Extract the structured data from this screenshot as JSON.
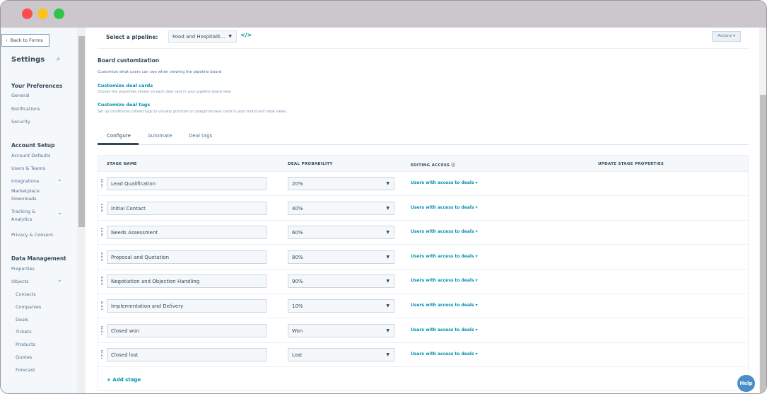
{
  "window": {
    "controls": [
      {
        "name": "close",
        "color": "#ff5f57"
      },
      {
        "name": "minimize",
        "color": "#febc2e"
      },
      {
        "name": "maximize",
        "color": "#28c840"
      }
    ]
  },
  "sidebar": {
    "back": "Back to Forms",
    "title": "Settings",
    "sections": [
      {
        "heading": "Your Preferences",
        "items": [
          "General",
          "Notifications",
          "Security"
        ]
      },
      {
        "heading": "Account Setup",
        "items": [
          "Account Defaults",
          "Users & Teams",
          "Integrations",
          "Marketplace Downloads",
          "Tracking & Analytics",
          "Privacy & Consent"
        ]
      },
      {
        "heading": "Data Management",
        "items": [
          "Properties",
          "Objects",
          "Contacts",
          "Companies",
          "Deals",
          "Tickets",
          "Products",
          "Quotes",
          "Forecast"
        ]
      }
    ]
  },
  "header": {
    "pipeline_label": "Select a pipeline:",
    "pipeline_value": "Food and Hospitalit...",
    "actions": "Actions"
  },
  "board": {
    "title": "Board customization",
    "description": "Customize what users can see when viewing the pipeline board",
    "cards_link": "Customize deal cards",
    "cards_desc": "Choose the properties shown on each deal card in your pipeline board view",
    "tags_link": "Customize deal tags",
    "tags_desc": "Set up conditional colored tags to visually prioritize or categorize deal cards in your board and table views."
  },
  "tabs": [
    "Configure",
    "Automate",
    "Deal tags"
  ],
  "active_tab": "Configure",
  "table": {
    "headers": [
      "STAGE NAME",
      "DEAL PROBABILITY",
      "EDITING ACCESS",
      "UPDATE STAGE PROPERTIES"
    ],
    "rows": [
      {
        "name": "Lead Qualification",
        "probability": "20%",
        "access": "Users with access to deals"
      },
      {
        "name": "Initial Contact",
        "probability": "40%",
        "access": "Users with access to deals"
      },
      {
        "name": "Needs Assessment",
        "probability": "60%",
        "access": "Users with access to deals"
      },
      {
        "name": "Proposal and Quotation",
        "probability": "80%",
        "access": "Users with access to deals"
      },
      {
        "name": "Negotiation and Objection Handling",
        "probability": "90%",
        "access": "Users with access to deals"
      },
      {
        "name": "Implementation and Delivery",
        "probability": "10%",
        "access": "Users with access to deals"
      },
      {
        "name": "Closed won",
        "probability": "Won",
        "access": "Users with access to deals"
      },
      {
        "name": "Closed lost",
        "probability": "Lost",
        "access": "Users with access to deals"
      }
    ],
    "add_stage": "+ Add stage"
  },
  "help": "Help"
}
